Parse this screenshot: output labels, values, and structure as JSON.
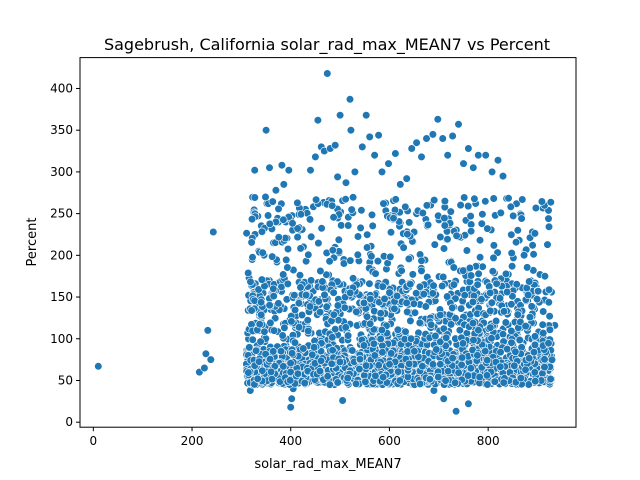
{
  "chart_data": {
    "type": "scatter",
    "title": "Sagebrush, California solar_rad_max_MEAN7 vs Percent",
    "xlabel": "solar_rad_max_MEAN7",
    "ylabel": "Percent",
    "xlim": [
      -27,
      978
    ],
    "ylim": [
      -6,
      437
    ],
    "xticks": [
      0,
      200,
      400,
      600,
      800
    ],
    "yticks": [
      0,
      50,
      100,
      150,
      200,
      250,
      300,
      350,
      400
    ],
    "grid": false,
    "legend": "none",
    "marker_color": "#1f77b4",
    "marker_edge_color": "#ffffff",
    "points_note_visible": "dense cloud of roughly 3000 points",
    "points": [
      [
        10,
        67
      ],
      [
        215,
        60
      ],
      [
        225,
        65
      ],
      [
        228,
        82
      ],
      [
        232,
        110
      ],
      [
        238,
        75
      ],
      [
        243,
        228
      ],
      [
        310,
        80
      ],
      [
        315,
        65
      ],
      [
        318,
        38
      ],
      [
        322,
        195
      ],
      [
        324,
        145
      ],
      [
        327,
        302
      ],
      [
        330,
        145
      ],
      [
        335,
        205
      ],
      [
        342,
        60
      ],
      [
        350,
        350
      ],
      [
        352,
        262
      ],
      [
        357,
        305
      ],
      [
        360,
        135
      ],
      [
        362,
        155
      ],
      [
        365,
        215
      ],
      [
        370,
        278
      ],
      [
        372,
        192
      ],
      [
        375,
        240
      ],
      [
        382,
        308
      ],
      [
        386,
        285
      ],
      [
        390,
        240
      ],
      [
        396,
        302
      ],
      [
        400,
        18
      ],
      [
        402,
        28
      ],
      [
        405,
        40
      ],
      [
        410,
        152
      ],
      [
        420,
        230
      ],
      [
        430,
        255
      ],
      [
        440,
        302
      ],
      [
        450,
        318
      ],
      [
        455,
        362
      ],
      [
        462,
        330
      ],
      [
        468,
        325
      ],
      [
        474,
        418
      ],
      [
        480,
        328
      ],
      [
        490,
        332
      ],
      [
        495,
        294
      ],
      [
        500,
        368
      ],
      [
        505,
        26
      ],
      [
        512,
        287
      ],
      [
        520,
        387
      ],
      [
        522,
        350
      ],
      [
        530,
        300
      ],
      [
        545,
        330
      ],
      [
        553,
        368
      ],
      [
        560,
        342
      ],
      [
        570,
        320
      ],
      [
        578,
        344
      ],
      [
        585,
        300
      ],
      [
        598,
        310
      ],
      [
        612,
        322
      ],
      [
        622,
        285
      ],
      [
        635,
        292
      ],
      [
        645,
        328
      ],
      [
        655,
        335
      ],
      [
        665,
        318
      ],
      [
        675,
        340
      ],
      [
        688,
        345
      ],
      [
        698,
        363
      ],
      [
        708,
        340
      ],
      [
        718,
        320
      ],
      [
        728,
        343
      ],
      [
        740,
        357
      ],
      [
        750,
        310
      ],
      [
        760,
        328
      ],
      [
        770,
        305
      ],
      [
        780,
        320
      ],
      [
        795,
        320
      ],
      [
        808,
        300
      ],
      [
        820,
        314
      ],
      [
        830,
        295
      ],
      [
        845,
        258
      ],
      [
        860,
        230
      ],
      [
        875,
        205
      ],
      [
        890,
        212
      ],
      [
        905,
        177
      ],
      [
        915,
        175
      ],
      [
        925,
        90
      ],
      [
        935,
        116
      ],
      [
        735,
        13
      ],
      [
        710,
        28
      ],
      [
        760,
        22
      ],
      [
        690,
        38
      ]
    ]
  }
}
